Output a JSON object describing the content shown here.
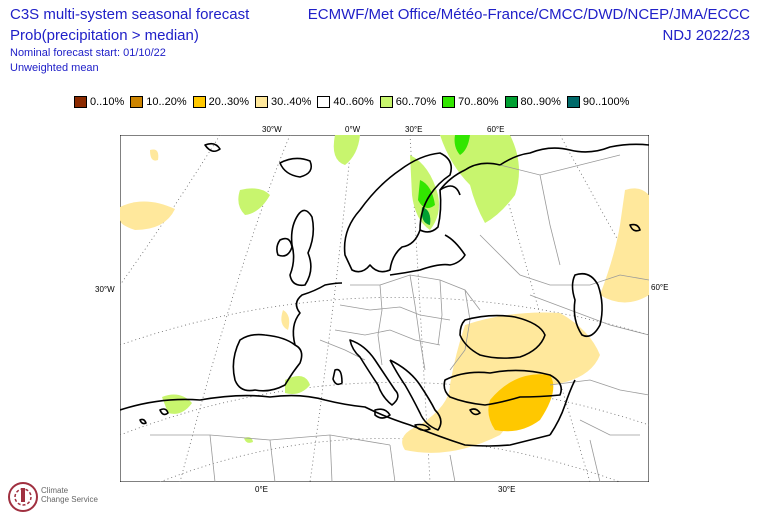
{
  "header": {
    "title": "C3S multi-system seasonal forecast",
    "subtitle": "Prob(precipitation > median)",
    "start_note": "Nominal forecast start: 01/10/22",
    "mean_note": "Unweighted mean",
    "models": "ECMWF/Met Office/Météo-France/CMCC/DWD/NCEP/JMA/ECCC",
    "season": "NDJ 2022/23"
  },
  "legend": [
    {
      "label": "0..10%",
      "color": "#8b2a00"
    },
    {
      "label": "10..20%",
      "color": "#cc8400"
    },
    {
      "label": "20..30%",
      "color": "#ffc800"
    },
    {
      "label": "30..40%",
      "color": "#ffe89c"
    },
    {
      "label": "40..60%",
      "color": "#ffffff"
    },
    {
      "label": "60..70%",
      "color": "#c8f56e"
    },
    {
      "label": "70..80%",
      "color": "#32e600"
    },
    {
      "label": "80..90%",
      "color": "#00a032"
    },
    {
      "label": "90..100%",
      "color": "#006a6a"
    }
  ],
  "graticule_labels": {
    "top": [
      "30°W",
      "0°W",
      "30°E",
      "60°E"
    ],
    "left": "30°W",
    "right": "60°E",
    "bottom": [
      "0°E",
      "30°E"
    ]
  },
  "logo": {
    "line1": "Climate",
    "line2": "Change Service"
  }
}
